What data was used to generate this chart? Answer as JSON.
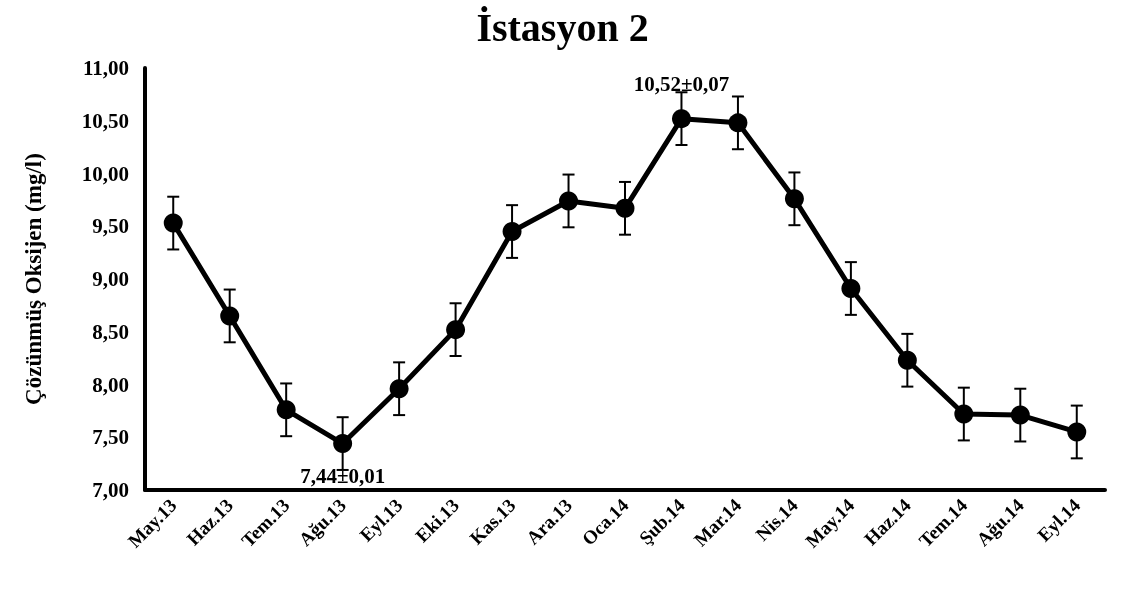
{
  "chart_data": {
    "type": "line",
    "title": "İstasyon 2",
    "ylabel": "Çözünmüş Oksijen (mg/l)",
    "categories": [
      "May.13",
      "Haz.13",
      "Tem.13",
      "Ağu.13",
      "Eyl.13",
      "Eki.13",
      "Kas.13",
      "Ara.13",
      "Oca.14",
      "Şub.14",
      "Mar.14",
      "Nis.14",
      "May.14",
      "Haz.14",
      "Tem.14",
      "Ağu.14",
      "Eyl.14"
    ],
    "series": [
      {
        "color": "#000000",
        "values": [
          9.53,
          8.65,
          7.76,
          7.44,
          7.96,
          8.52,
          9.45,
          9.74,
          9.67,
          10.52,
          10.48,
          9.76,
          8.91,
          8.23,
          7.72,
          7.71,
          7.55
        ],
        "errors": [
          0.25,
          0.25,
          0.25,
          0.25,
          0.25,
          0.25,
          0.25,
          0.25,
          0.25,
          0.25,
          0.25,
          0.25,
          0.25,
          0.25,
          0.25,
          0.25,
          0.25
        ]
      }
    ],
    "ylim": [
      7,
      11
    ],
    "yticks": [
      {
        "value": 7,
        "label": "7,00"
      },
      {
        "value": 7.5,
        "label": "7,50"
      },
      {
        "value": 8,
        "label": "8,00"
      },
      {
        "value": 8.5,
        "label": "8,50"
      },
      {
        "value": 9,
        "label": "9,00"
      },
      {
        "value": 9.5,
        "label": "9,50"
      },
      {
        "value": 10,
        "label": "10,00"
      },
      {
        "value": 10.5,
        "label": "10,50"
      },
      {
        "value": 11,
        "label": "11,00"
      }
    ],
    "annotations": [
      {
        "text": "7,44±0,01",
        "x": "Ağu.13",
        "y": 7.44
      },
      {
        "text": "10,52±0,07",
        "x": "Şub.14",
        "y": 10.52
      }
    ],
    "grid": false,
    "marker": "circle",
    "line_style": "solid"
  }
}
